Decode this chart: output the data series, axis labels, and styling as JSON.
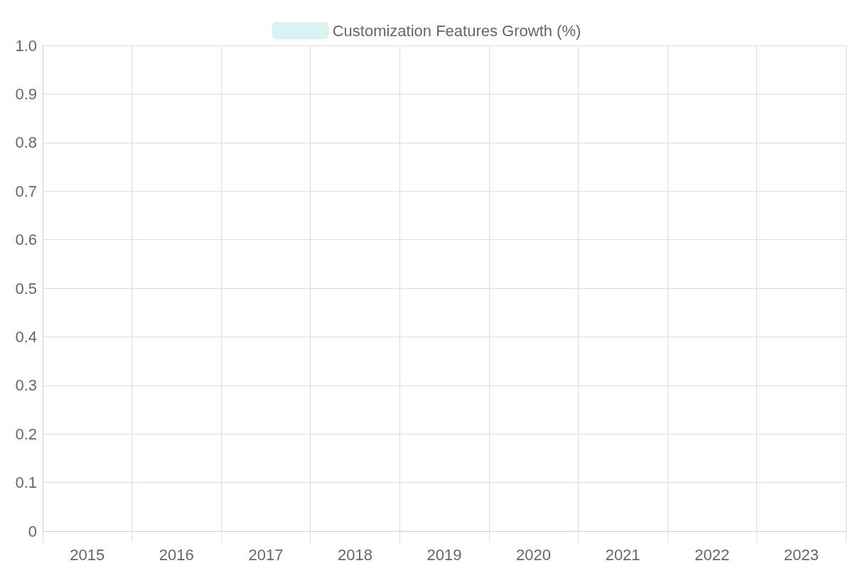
{
  "chart_data": {
    "type": "bar",
    "categories": [
      "2015",
      "2016",
      "2017",
      "2018",
      "2019",
      "2020",
      "2021",
      "2022",
      "2023"
    ],
    "series": [
      {
        "name": "Customization Features Growth (%)",
        "color": "#dbf2f2",
        "values": [
          null,
          null,
          null,
          null,
          null,
          null,
          null,
          null,
          null
        ]
      }
    ],
    "ylim": [
      0,
      1
    ],
    "yticks": [
      0,
      0.1,
      0.2,
      0.3,
      0.4,
      0.5,
      0.6,
      0.7,
      0.8,
      0.9,
      {
        "value": 1,
        "label": "1.0"
      }
    ],
    "grid": true,
    "legend": "top"
  }
}
